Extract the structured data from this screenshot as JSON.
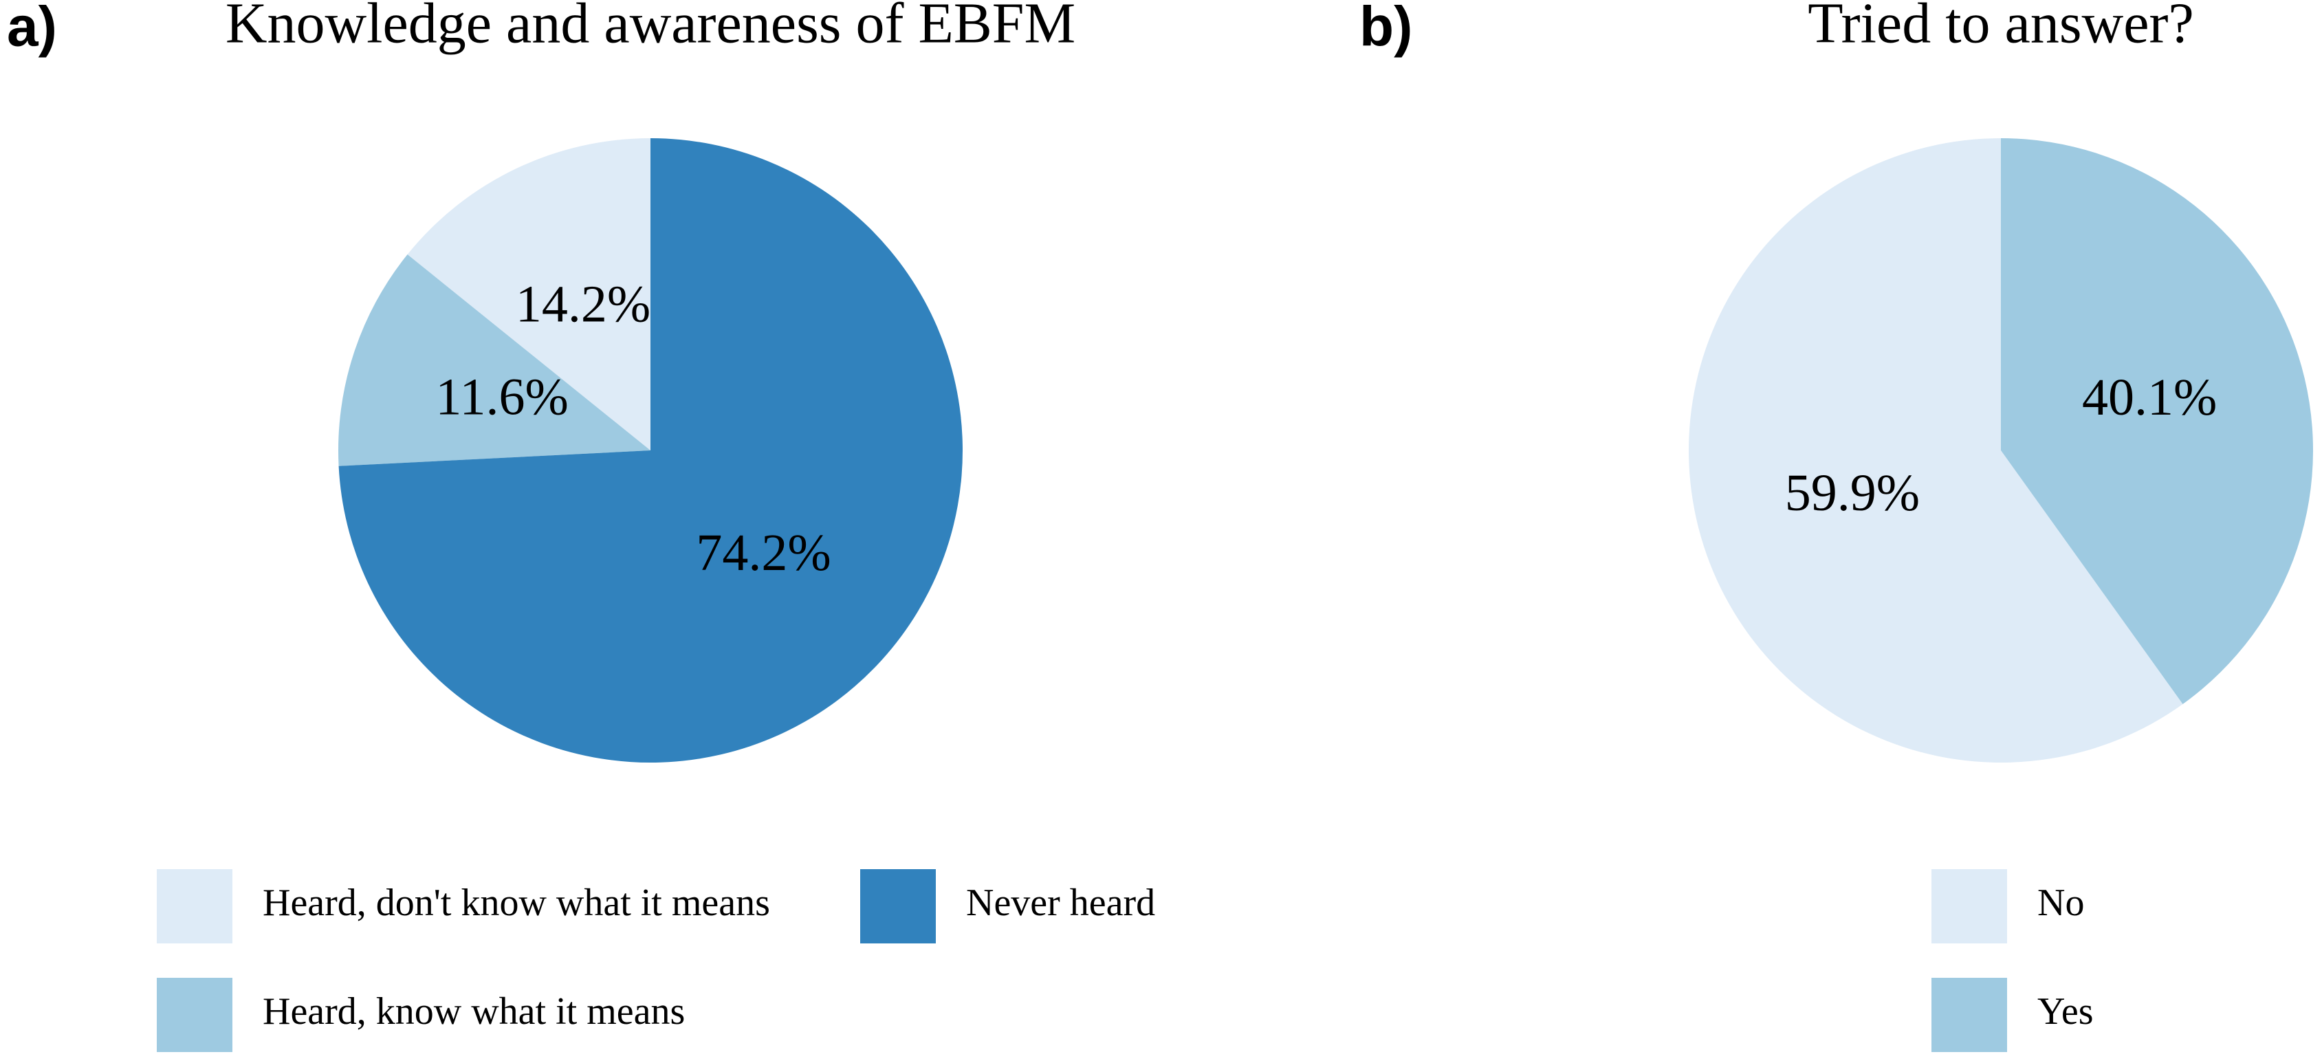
{
  "chart_data": [
    {
      "type": "pie",
      "panel_label": "a)",
      "title": "Knowledge and awareness of EBFM",
      "categories": [
        "Heard, don't know what it means",
        "Heard, know what it means",
        "Never heard"
      ],
      "values": [
        14.2,
        11.6,
        74.2
      ],
      "value_labels": [
        "14.2%",
        "11.6%",
        "74.2%"
      ],
      "colors": [
        "#deebf7",
        "#9ecae1",
        "#3182bd"
      ]
    },
    {
      "type": "pie",
      "panel_label": "b)",
      "title": "Tried to answer?",
      "categories": [
        "No",
        "Yes"
      ],
      "values": [
        59.9,
        40.1
      ],
      "value_labels": [
        "59.9%",
        "40.1%"
      ],
      "colors": [
        "#deebf7",
        "#9ecae1"
      ]
    }
  ]
}
